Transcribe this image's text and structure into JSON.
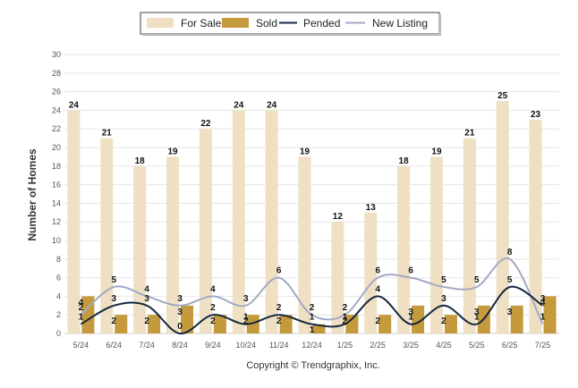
{
  "chart_data": {
    "type": "bar",
    "categories": [
      "5/24",
      "6/24",
      "7/24",
      "8/24",
      "9/24",
      "10/24",
      "11/24",
      "12/24",
      "1/25",
      "2/25",
      "3/25",
      "4/25",
      "5/25",
      "6/25",
      "7/25"
    ],
    "ylabel": "Number of Homes",
    "ylim": [
      0,
      30
    ],
    "yticks": [
      0,
      2,
      4,
      6,
      8,
      10,
      12,
      14,
      16,
      18,
      20,
      22,
      24,
      26,
      28,
      30
    ],
    "grid": true,
    "legend_position": "top-center",
    "series": [
      {
        "name": "For Sale",
        "kind": "bar",
        "color": "#efe0c3",
        "values": [
          24,
          21,
          18,
          19,
          22,
          24,
          24,
          19,
          12,
          13,
          18,
          19,
          21,
          25,
          23
        ]
      },
      {
        "name": "Sold",
        "kind": "bar",
        "color": "#c49a3c",
        "values": [
          4,
          2,
          2,
          3,
          2,
          2,
          2,
          1,
          2,
          2,
          3,
          2,
          3,
          3,
          4
        ]
      },
      {
        "name": "Pended",
        "kind": "line",
        "color": "#14273e",
        "values": [
          1,
          3,
          3,
          0,
          2,
          1,
          2,
          1,
          1,
          4,
          1,
          3,
          1,
          5,
          3
        ]
      },
      {
        "name": "New Listing",
        "kind": "line",
        "color": "#a3a9c4",
        "values": [
          2,
          5,
          4,
          3,
          4,
          3,
          6,
          2,
          2,
          6,
          6,
          5,
          5,
          8,
          1
        ]
      }
    ]
  },
  "footer": {
    "copyright": "Copyright © Trendgraphix, Inc."
  }
}
